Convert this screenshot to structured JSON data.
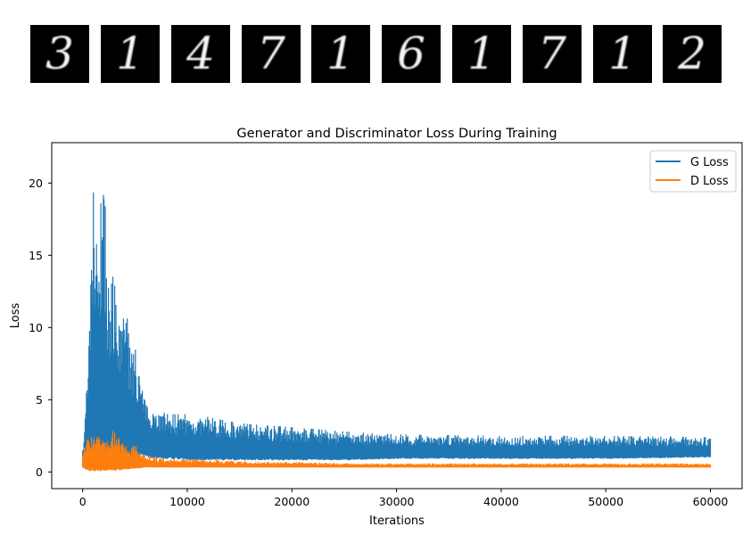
{
  "samples": {
    "digits": [
      "3",
      "1",
      "4",
      "7",
      "1",
      "6",
      "1",
      "7",
      "1",
      "2"
    ]
  },
  "chart_data": {
    "type": "line",
    "title": "Generator and Discriminator Loss During Training",
    "xlabel": "Iterations",
    "ylabel": "Loss",
    "xlim": [
      -3000,
      63000
    ],
    "ylim": [
      -1.1,
      22.5
    ],
    "xticks": [
      0,
      10000,
      20000,
      30000,
      40000,
      50000,
      60000
    ],
    "yticks": [
      0,
      5,
      10,
      15,
      20
    ],
    "grid": false,
    "legend": "top-right",
    "note_envelope": "values given as min/max envelope of noisy per-iteration losses",
    "x": [
      0,
      500,
      1000,
      1500,
      2000,
      2500,
      3000,
      3500,
      4000,
      4500,
      5000,
      5500,
      6000,
      7000,
      8000,
      10000,
      12000,
      14000,
      16000,
      20000,
      25000,
      30000,
      40000,
      50000,
      60000
    ],
    "series": [
      {
        "name": "G Loss",
        "color": "#1f77b4",
        "y_max": [
          1.5,
          7.0,
          19.5,
          16.0,
          21.4,
          12.0,
          14.0,
          10.5,
          12.8,
          8.6,
          8.6,
          7.0,
          5.0,
          4.5,
          4.0,
          4.0,
          3.8,
          3.5,
          3.3,
          3.1,
          2.8,
          2.6,
          2.5,
          2.5,
          2.4
        ],
        "y_min": [
          0.4,
          0.3,
          0.3,
          0.4,
          0.4,
          0.5,
          0.6,
          0.7,
          0.8,
          0.9,
          0.9,
          1.0,
          1.0,
          0.9,
          0.9,
          0.8,
          0.8,
          0.8,
          0.8,
          0.8,
          0.8,
          0.9,
          0.9,
          0.9,
          1.0
        ]
      },
      {
        "name": "D Loss",
        "color": "#ff7f0e",
        "y_max": [
          1.5,
          2.3,
          2.8,
          2.7,
          2.6,
          2.0,
          3.1,
          2.2,
          2.1,
          1.5,
          1.9,
          1.3,
          1.2,
          1.0,
          0.9,
          0.9,
          0.8,
          0.8,
          0.7,
          0.7,
          0.6,
          0.6,
          0.6,
          0.6,
          0.6
        ],
        "y_min": [
          0.3,
          0.05,
          0.05,
          0.05,
          0.05,
          0.1,
          0.1,
          0.1,
          0.15,
          0.2,
          0.2,
          0.25,
          0.3,
          0.3,
          0.3,
          0.3,
          0.3,
          0.3,
          0.3,
          0.3,
          0.3,
          0.3,
          0.3,
          0.3,
          0.3
        ]
      }
    ]
  }
}
